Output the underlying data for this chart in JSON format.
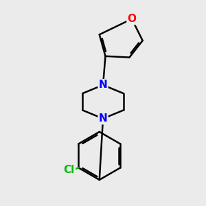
{
  "bg_color": "#ebebeb",
  "bond_color": "#000000",
  "N_color": "#0000ff",
  "O_color": "#ff0000",
  "Cl_color": "#00bb00",
  "line_width": 1.8,
  "font_size_atom": 11,
  "fig_size": [
    3.0,
    3.0
  ],
  "dpi": 100,
  "xlim": [
    2.0,
    8.0
  ],
  "ylim": [
    1.0,
    9.5
  ]
}
